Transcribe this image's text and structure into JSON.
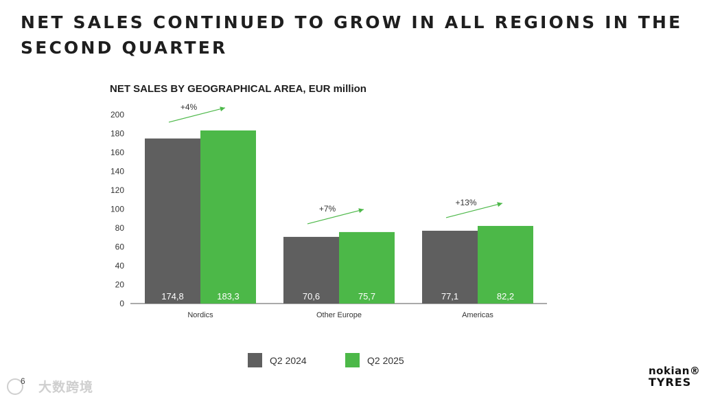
{
  "slide": {
    "title": "NET SALES CONTINUED TO GROW IN ALL REGIONS IN THE SECOND QUARTER",
    "page_number": "6",
    "watermark": "大数跨境",
    "logo_line1": "nokian®",
    "logo_line2": "TYRES"
  },
  "colors": {
    "q2_2024": "#5f5f5f",
    "q2_2025": "#4cb848",
    "arrow": "#4cb848",
    "axis": "#555555"
  },
  "chart_data": {
    "type": "bar",
    "title": "NET SALES BY GEOGRAPHICAL AREA, EUR million",
    "categories": [
      "Nordics",
      "Other Europe",
      "Americas"
    ],
    "series": [
      {
        "name": "Q2 2024",
        "values": [
          174.8,
          70.6,
          77.1
        ],
        "labels": [
          "174,8",
          "70,6",
          "77,1"
        ]
      },
      {
        "name": "Q2 2025",
        "values": [
          183.3,
          75.7,
          82.2
        ],
        "labels": [
          "183,3",
          "75,7",
          "82,2"
        ]
      }
    ],
    "growth_labels": [
      "+4%",
      "+7%",
      "+13%"
    ],
    "ylim": [
      0,
      200
    ],
    "yticks": [
      0,
      20,
      40,
      60,
      80,
      100,
      120,
      140,
      160,
      180,
      200
    ],
    "xlabel": "",
    "ylabel": "",
    "legend": "bottom"
  }
}
